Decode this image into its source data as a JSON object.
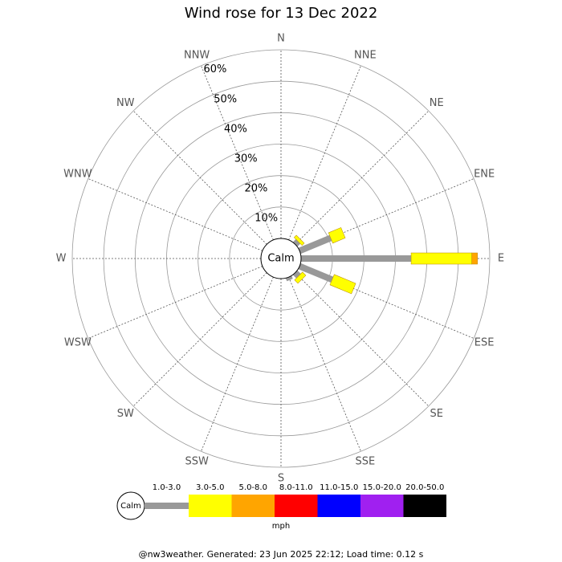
{
  "chart_data": {
    "type": "wind_rose",
    "title": "Wind rose for 13 Dec 2022",
    "directions": [
      "N",
      "NNE",
      "NE",
      "ENE",
      "E",
      "ESE",
      "SE",
      "SSE",
      "S",
      "SSW",
      "SW",
      "WSW",
      "W",
      "WNW",
      "NW",
      "NNW"
    ],
    "calm_label": "Calm",
    "rlim": [
      0,
      60
    ],
    "rticks": [
      {
        "value": 10,
        "label": "10%"
      },
      {
        "value": 20,
        "label": "20%"
      },
      {
        "value": 30,
        "label": "30%"
      },
      {
        "value": 40,
        "label": "40%"
      },
      {
        "value": 50,
        "label": "50%"
      },
      {
        "value": 60,
        "label": "60%"
      }
    ],
    "series": [
      {
        "name": "1.0-3.0",
        "color": "#999999",
        "values": [
          0,
          0,
          1.3,
          10.7,
          35,
          11.2,
          1.5,
          1.0,
          0,
          0,
          0,
          0,
          0,
          0,
          0,
          0
        ]
      },
      {
        "name": "3.0-5.0",
        "color": "#ffff00",
        "values": [
          0,
          0,
          1,
          4.3,
          19.3,
          7.4,
          1.5,
          0,
          0,
          0,
          0,
          0,
          0,
          0,
          0,
          0
        ]
      },
      {
        "name": "5.0-8.0",
        "color": "#ffa500",
        "values": [
          0,
          0,
          0,
          0,
          1.8,
          0,
          0,
          0,
          0,
          0,
          0,
          0,
          0,
          0,
          0,
          0
        ]
      },
      {
        "name": "8.0-11.0",
        "color": "#ff0000",
        "values": [
          0,
          0,
          0,
          0,
          0,
          0,
          0,
          0,
          0,
          0,
          0,
          0,
          0,
          0,
          0,
          0
        ]
      },
      {
        "name": "11.0-15.0",
        "color": "#0000ff",
        "values": [
          0,
          0,
          0,
          0,
          0,
          0,
          0,
          0,
          0,
          0,
          0,
          0,
          0,
          0,
          0,
          0
        ]
      },
      {
        "name": "15.0-20.0",
        "color": "#a020f0",
        "values": [
          0,
          0,
          0,
          0,
          0,
          0,
          0,
          0,
          0,
          0,
          0,
          0,
          0,
          0,
          0,
          0
        ]
      },
      {
        "name": "20.0-50.0",
        "color": "#000000",
        "values": [
          0,
          0,
          0,
          0,
          0,
          0,
          0,
          0,
          0,
          0,
          0,
          0,
          0,
          0,
          0,
          0
        ]
      }
    ],
    "unit": "mph",
    "footer": "@nw3weather.  Generated: 23 Jun 2025 22:12; Load time: 0.12 s"
  }
}
